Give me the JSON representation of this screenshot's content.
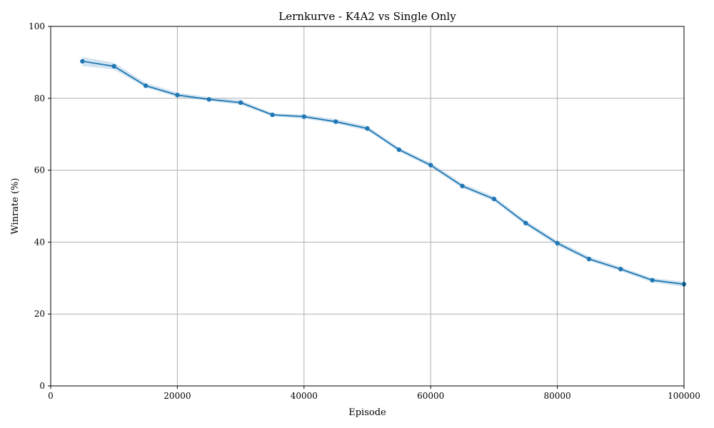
{
  "chart_data": {
    "type": "line",
    "title": "Lernkurve - K4A2 vs Single Only",
    "xlabel": "Episode",
    "ylabel": "Winrate (%)",
    "xlim": [
      0,
      100000
    ],
    "ylim": [
      0,
      100
    ],
    "grid": true,
    "x_ticks": [
      0,
      20000,
      40000,
      60000,
      80000,
      100000
    ],
    "y_ticks": [
      0,
      20,
      40,
      60,
      80,
      100
    ],
    "series": [
      {
        "x": [
          5000,
          10000,
          15000,
          20000,
          25000,
          30000,
          35000,
          40000,
          45000,
          50000,
          55000,
          60000,
          65000,
          70000,
          75000,
          80000,
          85000,
          90000,
          95000,
          100000
        ],
        "y": [
          90.3,
          88.9,
          83.5,
          80.9,
          79.7,
          78.8,
          75.4,
          74.9,
          73.5,
          71.6,
          65.7,
          61.4,
          55.6,
          52.0,
          45.3,
          39.7,
          35.3,
          32.5,
          29.4,
          28.3
        ],
        "band_lower": [
          89.0,
          88.0,
          83.0,
          80.3,
          79.3,
          78.2,
          75.0,
          74.3,
          73.0,
          71.0,
          65.2,
          60.8,
          55.0,
          51.4,
          44.7,
          39.0,
          34.8,
          31.9,
          28.8,
          27.6
        ],
        "band_upper": [
          91.5,
          89.9,
          84.3,
          81.6,
          80.3,
          79.5,
          75.9,
          75.5,
          74.2,
          72.3,
          66.3,
          62.1,
          56.3,
          52.7,
          46.0,
          40.4,
          36.0,
          33.1,
          30.0,
          29.0
        ],
        "color": "#1f77b4",
        "band_color": "#1f77b4"
      }
    ]
  }
}
